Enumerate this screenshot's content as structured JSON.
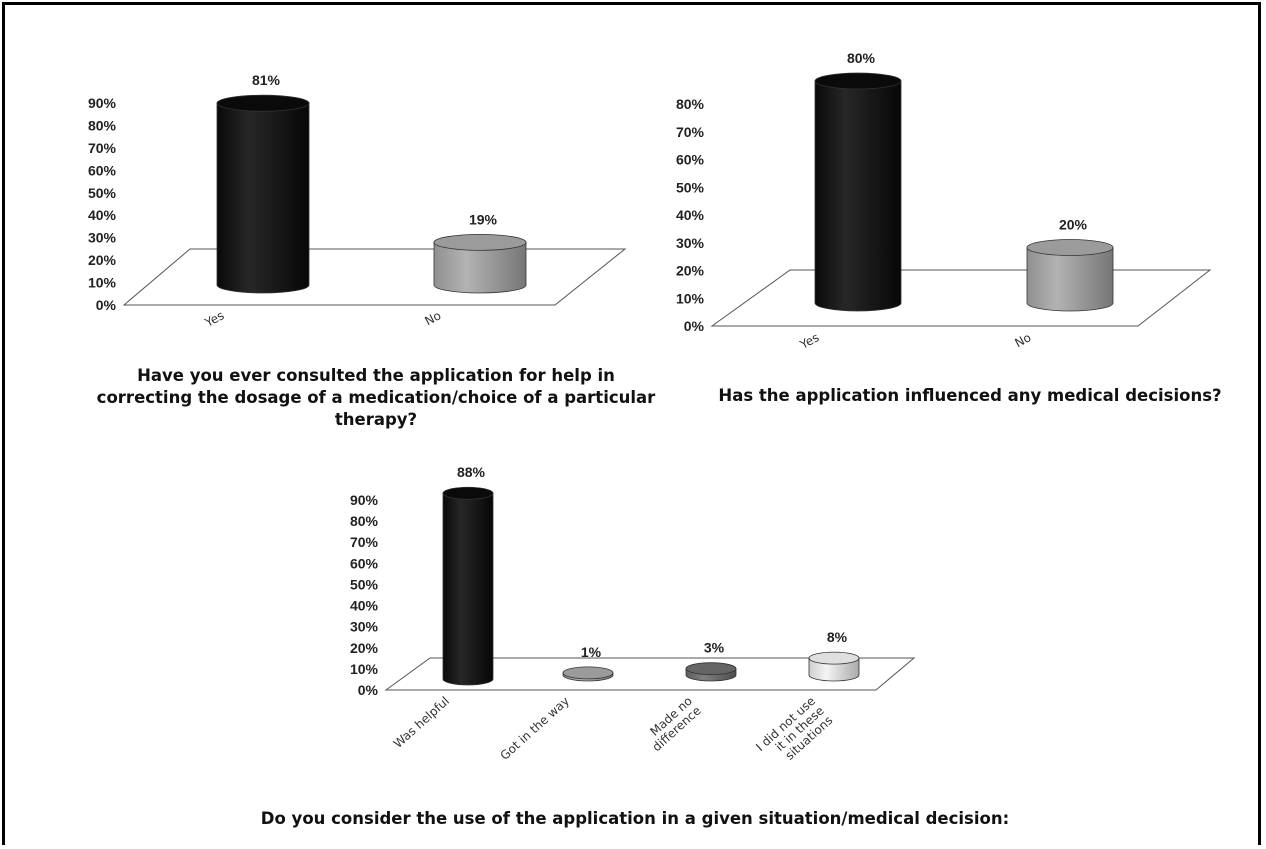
{
  "chart_data": [
    {
      "type": "bar",
      "title": "Have you ever consulted the application for help in correcting the dosage of a medication/choice of a particular therapy?",
      "categories": [
        "Yes",
        "No"
      ],
      "values": [
        81,
        19
      ],
      "data_labels": [
        "81%",
        "19%"
      ],
      "ylim": [
        0,
        90
      ],
      "yticks": [
        "0%",
        "10%",
        "20%",
        "30%",
        "40%",
        "50%",
        "60%",
        "70%",
        "80%",
        "90%"
      ],
      "colors": [
        "#0a0a0a",
        "#a9a9a9"
      ]
    },
    {
      "type": "bar",
      "title": "Has the application influenced any medical decisions?",
      "categories": [
        "Yes",
        "No"
      ],
      "values": [
        80,
        20
      ],
      "data_labels": [
        "80%",
        "20%"
      ],
      "ylim": [
        0,
        80
      ],
      "yticks": [
        "0%",
        "10%",
        "20%",
        "30%",
        "40%",
        "50%",
        "60%",
        "70%",
        "80%"
      ],
      "colors": [
        "#0a0a0a",
        "#a9a9a9"
      ]
    },
    {
      "type": "bar",
      "title": "Do you consider the use of the application in a given situation/medical decision:",
      "categories": [
        "Was helpful",
        "Got in the way",
        "Made no difference",
        "I did not use it in these situations"
      ],
      "category_lines": [
        [
          "Was helpful"
        ],
        [
          "Got in the way"
        ],
        [
          "Made no",
          "difference"
        ],
        [
          "I did not use",
          "it in these",
          "situations"
        ]
      ],
      "values": [
        88,
        1,
        3,
        8
      ],
      "data_labels": [
        "88%",
        "1%",
        "3%",
        "8%"
      ],
      "ylim": [
        0,
        90
      ],
      "yticks": [
        "0%",
        "10%",
        "20%",
        "30%",
        "40%",
        "50%",
        "60%",
        "70%",
        "80%",
        "90%"
      ],
      "colors": [
        "#0a0a0a",
        "#a9a9a9",
        "#6e6e6e",
        "#f2f2f2"
      ]
    }
  ]
}
